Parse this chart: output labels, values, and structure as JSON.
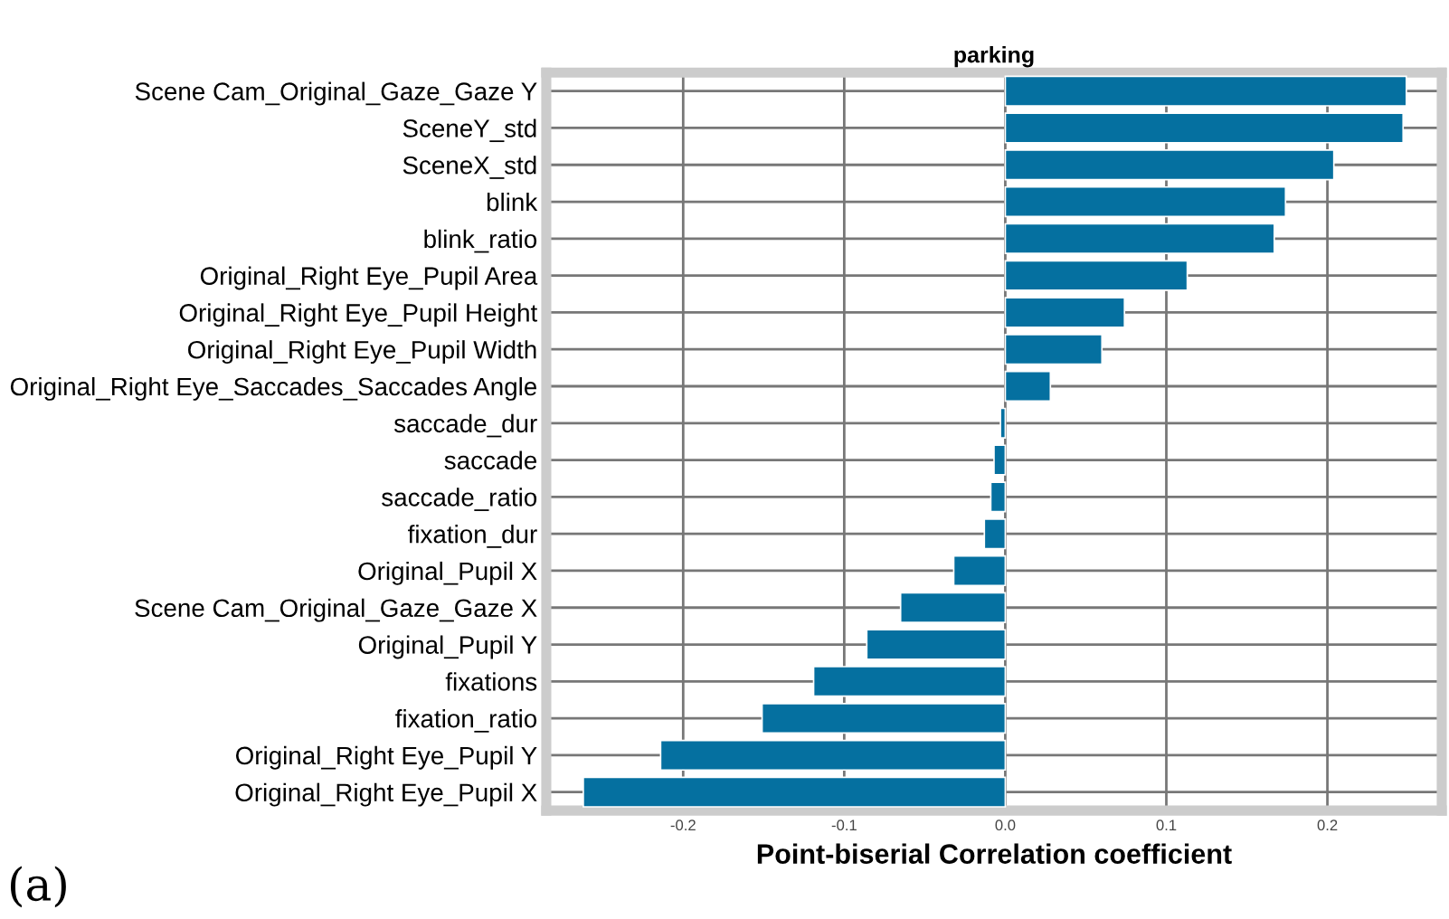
{
  "chart_data": {
    "type": "bar",
    "orientation": "horizontal",
    "title": "parking",
    "xlabel": "Point-biserial Correlation coefficient",
    "categories": [
      "Scene Cam_Original_Gaze_Gaze Y",
      "SceneY_std",
      "SceneX_std",
      "blink",
      "blink_ratio",
      "Original_Right Eye_Pupil Area",
      "Original_Right Eye_Pupil Height",
      "Original_Right Eye_Pupil Width",
      "Original_Right Eye_Saccades_Saccades Angle",
      "saccade_dur",
      "saccade",
      "saccade_ratio",
      "fixation_dur",
      "Original_Pupil X",
      "Scene Cam_Original_Gaze_Gaze X",
      "Original_Pupil Y",
      "fixations",
      "fixation_ratio",
      "Original_Right Eye_Pupil Y",
      "Original_Right Eye_Pupil X"
    ],
    "values": [
      0.249,
      0.247,
      0.204,
      0.174,
      0.167,
      0.113,
      0.074,
      0.06,
      0.028,
      -0.003,
      -0.007,
      -0.009,
      -0.013,
      -0.032,
      -0.065,
      -0.086,
      -0.119,
      -0.151,
      -0.214,
      -0.262
    ],
    "color": "#0570a0",
    "xlim": [
      -0.285,
      0.271
    ],
    "xticks": [
      -0.2,
      -0.1,
      {
        "value": 0,
        "label": "0.0"
      },
      0.1,
      0.2
    ],
    "grid": true,
    "annotations": [
      "(a)"
    ]
  }
}
